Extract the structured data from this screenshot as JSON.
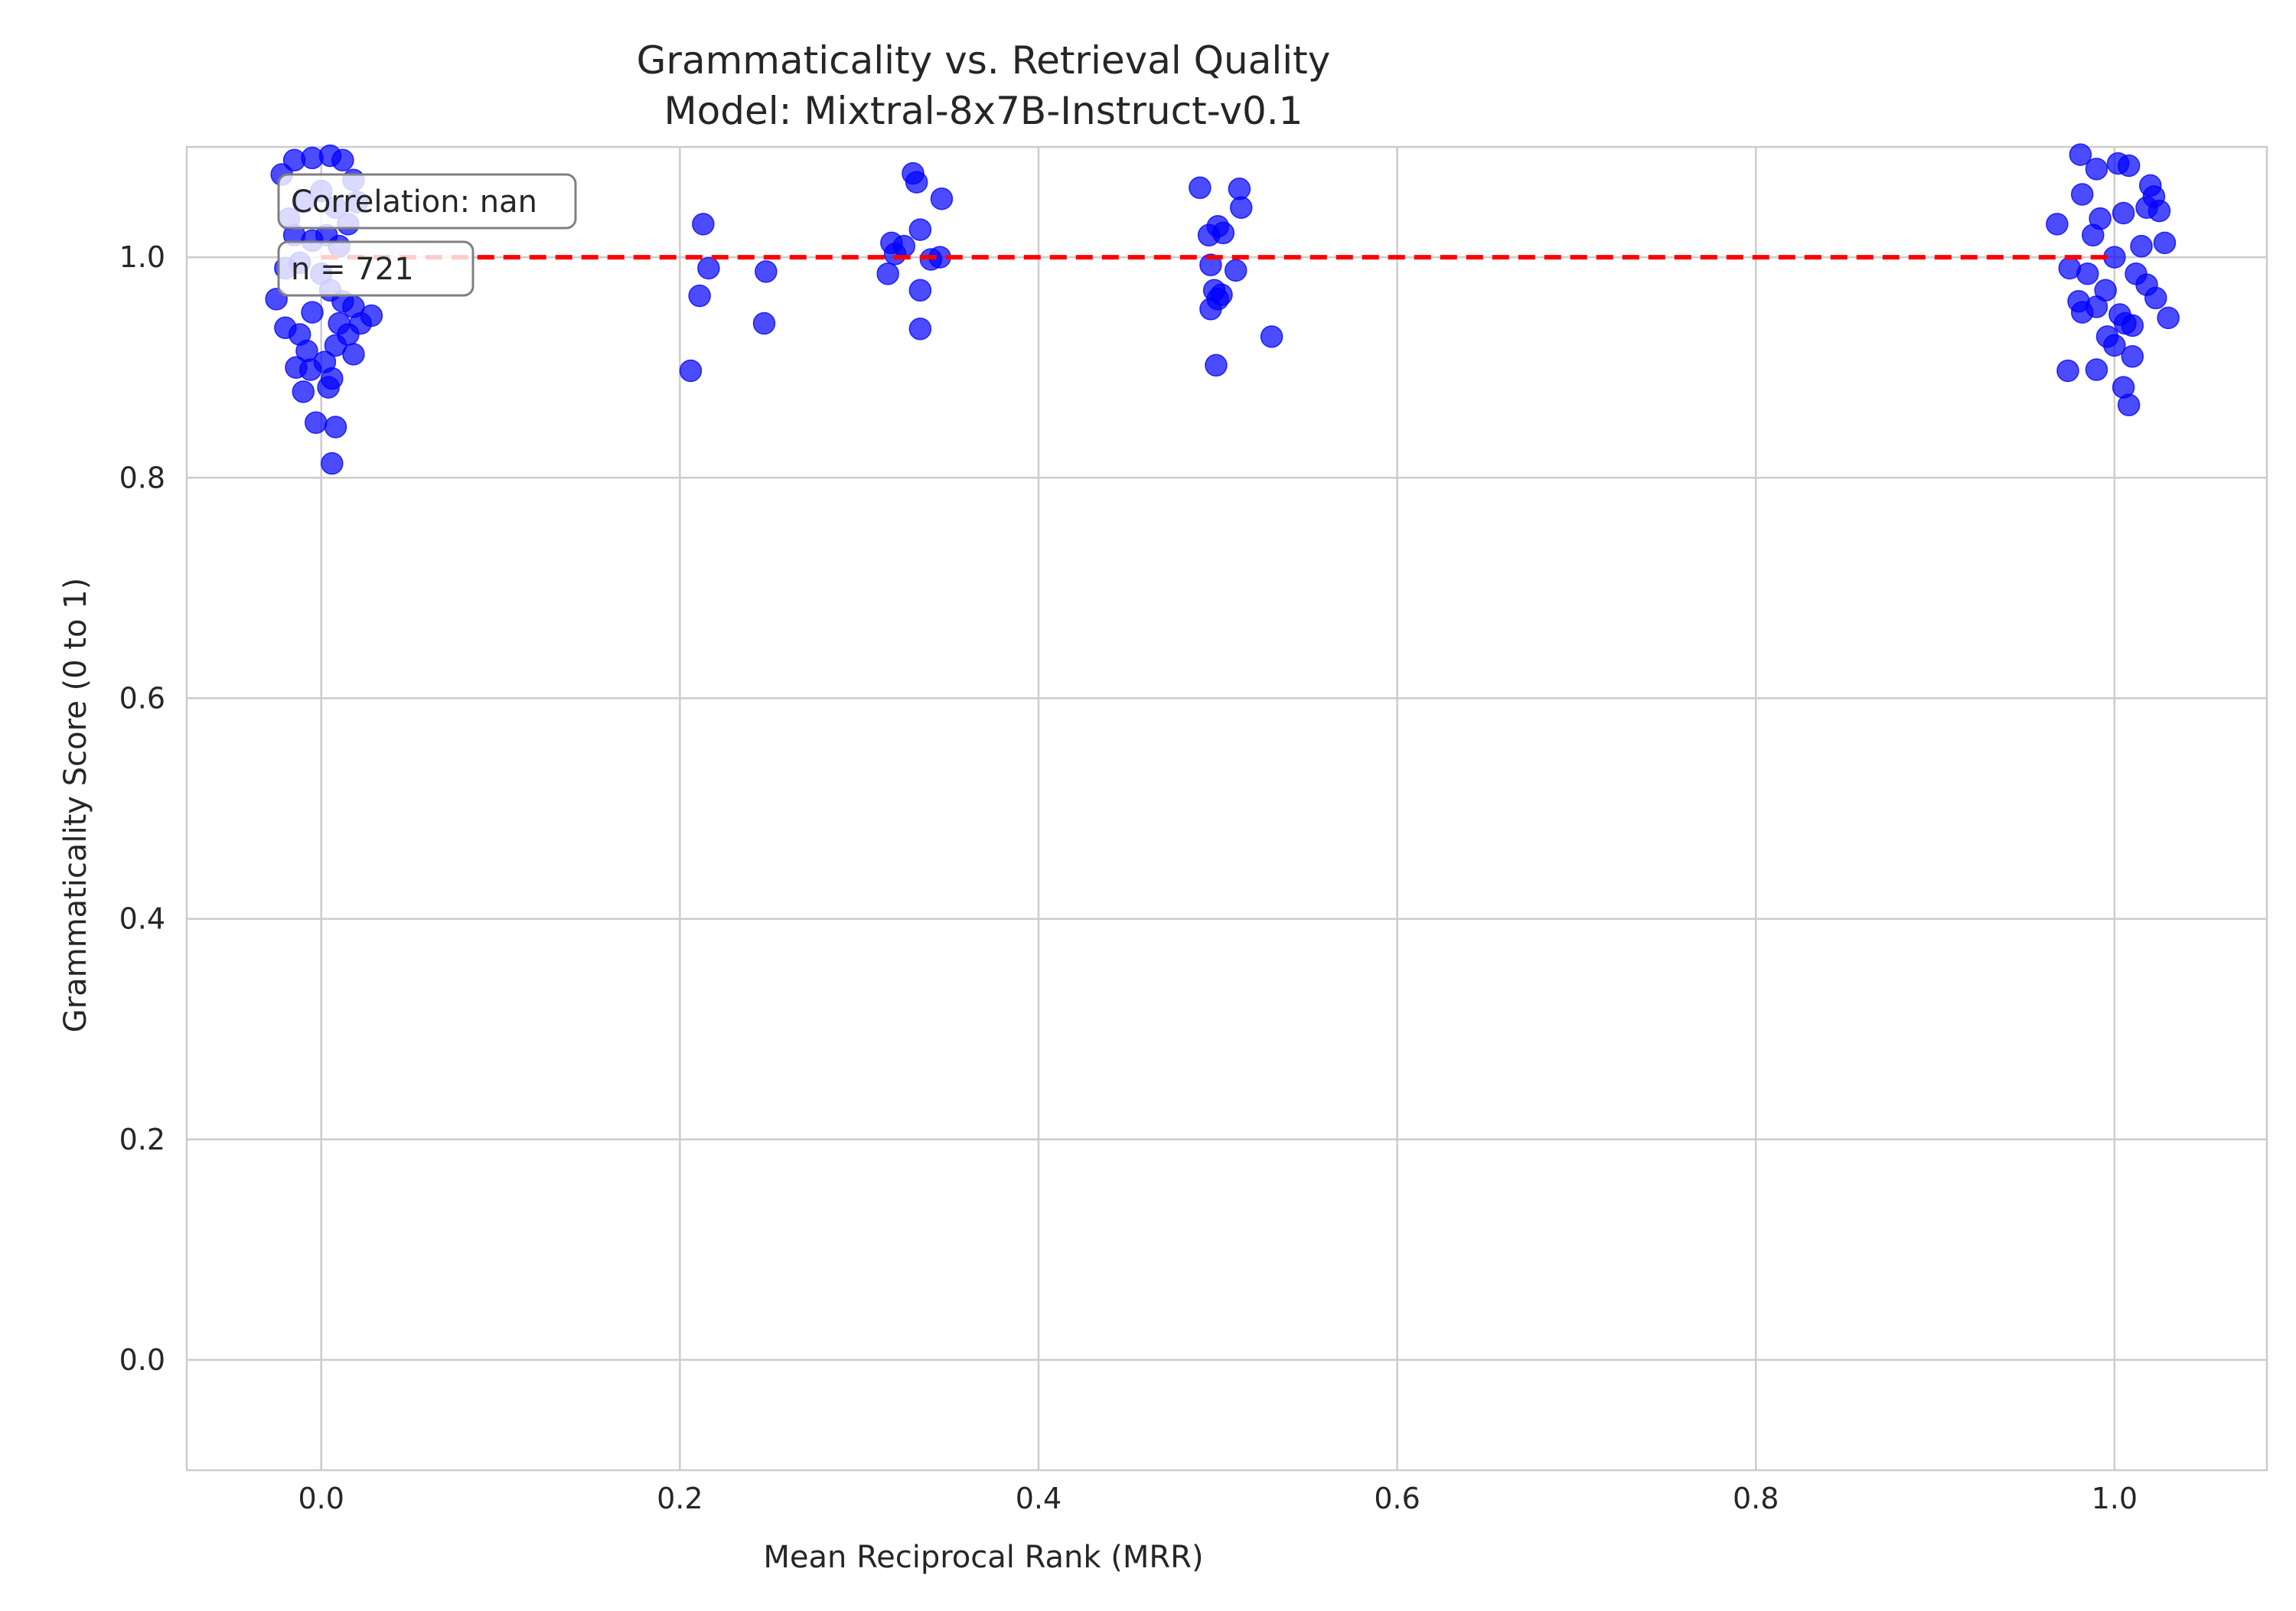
{
  "chart_data": {
    "type": "scatter",
    "title": "Grammaticality vs. Retrieval Quality",
    "subtitle": "Model: Mixtral-8x7B-Instruct-v0.1",
    "xlabel": "Mean Reciprocal Rank (MRR)",
    "ylabel": "Grammaticality Score (0 to 1)",
    "xlim": [
      -0.075,
      1.085
    ],
    "ylim": [
      -0.1,
      1.1
    ],
    "xticks": [
      0.0,
      0.2,
      0.4,
      0.6,
      0.8,
      1.0
    ],
    "xtick_labels": [
      "0.0",
      "0.2",
      "0.4",
      "0.6",
      "0.8",
      "1.0"
    ],
    "yticks": [
      0.0,
      0.2,
      0.4,
      0.6,
      0.8,
      1.0
    ],
    "ytick_labels": [
      "0.0",
      "0.2",
      "0.4",
      "0.6",
      "0.8",
      "1.0"
    ],
    "grid": true,
    "annotations": [
      "Correlation: nan",
      "n = 721"
    ],
    "reference_line": {
      "style": "dashed",
      "color": "#ff0000",
      "y": 1.0,
      "x_range": [
        0.0,
        1.0
      ]
    },
    "marker_color": "#0000ff",
    "series": [
      {
        "points": [
          [
            -0.022,
            1.075
          ],
          [
            -0.018,
            1.035
          ],
          [
            -0.025,
            0.962
          ],
          [
            -0.02,
            0.936
          ],
          [
            -0.014,
            0.9
          ],
          [
            -0.01,
            0.878
          ],
          [
            -0.015,
            1.088
          ],
          [
            -0.005,
            1.09
          ],
          [
            0.005,
            1.092
          ],
          [
            0.012,
            1.088
          ],
          [
            0.018,
            1.07
          ],
          [
            0.02,
            1.05
          ],
          [
            0.015,
            1.03
          ],
          [
            0.01,
            1.01
          ],
          [
            -0.005,
            1.015
          ],
          [
            -0.012,
            0.995
          ],
          [
            -0.02,
            0.99
          ],
          [
            0.0,
            0.985
          ],
          [
            0.005,
            0.97
          ],
          [
            0.012,
            0.96
          ],
          [
            0.018,
            0.955
          ],
          [
            0.022,
            0.94
          ],
          [
            0.028,
            0.947
          ],
          [
            0.015,
            0.93
          ],
          [
            0.018,
            0.912
          ],
          [
            0.008,
            0.92
          ],
          [
            0.002,
            0.905
          ],
          [
            -0.008,
            0.915
          ],
          [
            -0.012,
            0.93
          ],
          [
            0.004,
            0.882
          ],
          [
            -0.003,
            0.85
          ],
          [
            0.008,
            0.846
          ],
          [
            0.006,
            0.813
          ],
          [
            0.0,
            1.06
          ],
          [
            0.008,
            1.045
          ],
          [
            -0.01,
            1.05
          ],
          [
            0.003,
            1.02
          ],
          [
            -0.015,
            1.02
          ],
          [
            0.01,
            0.94
          ],
          [
            -0.005,
            0.95
          ],
          [
            0.006,
            0.89
          ],
          [
            -0.006,
            0.898
          ],
          [
            0.213,
            1.03
          ],
          [
            0.216,
            0.99
          ],
          [
            0.211,
            0.965
          ],
          [
            0.206,
            0.897
          ],
          [
            0.247,
            0.94
          ],
          [
            0.248,
            0.987
          ],
          [
            0.33,
            1.076
          ],
          [
            0.332,
            1.068
          ],
          [
            0.346,
            1.053
          ],
          [
            0.334,
            1.025
          ],
          [
            0.318,
            1.013
          ],
          [
            0.325,
            1.01
          ],
          [
            0.32,
            1.003
          ],
          [
            0.34,
            0.998
          ],
          [
            0.345,
            1.0
          ],
          [
            0.316,
            0.985
          ],
          [
            0.334,
            0.97
          ],
          [
            0.334,
            0.935
          ],
          [
            0.49,
            1.063
          ],
          [
            0.512,
            1.062
          ],
          [
            0.513,
            1.045
          ],
          [
            0.5,
            1.028
          ],
          [
            0.503,
            1.022
          ],
          [
            0.495,
            1.02
          ],
          [
            0.496,
            0.993
          ],
          [
            0.51,
            0.988
          ],
          [
            0.498,
            0.97
          ],
          [
            0.502,
            0.966
          ],
          [
            0.5,
            0.962
          ],
          [
            0.496,
            0.953
          ],
          [
            0.53,
            0.928
          ],
          [
            0.499,
            0.902
          ],
          [
            0.981,
            1.093
          ],
          [
            0.99,
            1.08
          ],
          [
            1.002,
            1.085
          ],
          [
            1.008,
            1.083
          ],
          [
            0.982,
            1.057
          ],
          [
            1.02,
            1.065
          ],
          [
            1.022,
            1.055
          ],
          [
            1.025,
            1.042
          ],
          [
            1.018,
            1.045
          ],
          [
            1.005,
            1.04
          ],
          [
            0.992,
            1.035
          ],
          [
            0.968,
            1.03
          ],
          [
            0.988,
            1.02
          ],
          [
            1.028,
            1.013
          ],
          [
            1.015,
            1.01
          ],
          [
            1.0,
            1.0
          ],
          [
            0.975,
            0.99
          ],
          [
            0.985,
            0.985
          ],
          [
            1.012,
            0.985
          ],
          [
            1.018,
            0.975
          ],
          [
            0.995,
            0.97
          ],
          [
            1.023,
            0.963
          ],
          [
            0.98,
            0.96
          ],
          [
            0.99,
            0.955
          ],
          [
            0.982,
            0.95
          ],
          [
            1.003,
            0.948
          ],
          [
            1.03,
            0.945
          ],
          [
            1.006,
            0.94
          ],
          [
            1.01,
            0.938
          ],
          [
            0.996,
            0.928
          ],
          [
            1.0,
            0.92
          ],
          [
            1.01,
            0.91
          ],
          [
            0.974,
            0.897
          ],
          [
            0.99,
            0.898
          ],
          [
            1.005,
            0.882
          ],
          [
            1.008,
            0.866
          ]
        ]
      }
    ]
  }
}
